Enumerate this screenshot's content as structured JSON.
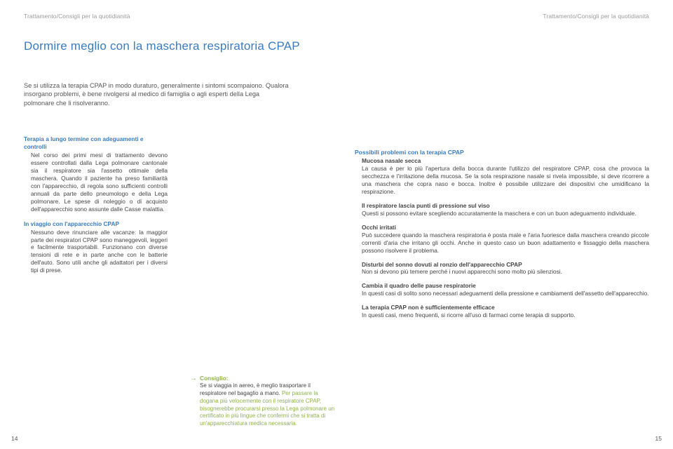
{
  "running_head": "Trattamento/Consigli per la quotidianità",
  "page_left_num": "14",
  "page_right_num": "15",
  "title": "Dormire meglio con la maschera respiratoria CPAP",
  "intro": "Se si utilizza la terapia CPAP in modo duraturo, generalmente i sintomi scompaiono. Qualora insorgano problemi, è bene rivolgersi al medico di famiglia o agli esperti della Lega polmonare che li risolveranno.",
  "left": {
    "sec1_head": "Terapia a lungo termine con adeguamenti e controlli",
    "sec1_body": "Nel corso dei primi mesi di trattamento devono essere controllati dalla Lega polmonare cantonale sia il respiratore sia l'assetto ottimale della maschera. Quando il paziente ha preso familiarità con l'apparecchio, di regola sono sufficienti controlli annuali da parte dello pneumologo e della Lega polmonare. Le spese di noleggio o di acquisto dell'apparecchio sono assunte dalle Casse malattia.",
    "sec2_head": "In viaggio con l'apparecchio CPAP",
    "sec2_body": "Nessuno deve rinunciare alle vacanze: la maggior parte dei respiratori CPAP sono maneggevoli, leggeri e facilmente trasportabili. Funzionano con diverse tensioni di rete e in parte anche con le batterie dell'auto. Sono utili anche gli adattatori per i diversi tipi di prese."
  },
  "tip": {
    "head": "Consiglio:",
    "lead": "Se si viaggia in aereo, è meglio trasportare il respiratore nel bagaglio a mano. ",
    "body": "Per passare la dogana più velocemente con il respiratore CPAP, bisognerebbe procurarsi presso la Lega polmonare un certificato in più lingue che confermi che si tratta di un'apparecchiatura medica necessaria."
  },
  "right": {
    "main_head": "Possibili problemi con la terapia CPAP",
    "s1_head": "Mucosa nasale secca",
    "s1_body": "La causa è per lo più l'apertura della bocca durante l'utilizzo del respiratore CPAP, cosa che provoca la secchezza e l'irritazione della mucosa. Se la sola respirazione nasale si rivela impossibile, si deve ricorrere a una maschera che copra naso e bocca. Inoltre è possibile utilizzare dei dispositivi che umidificano la respirazione.",
    "s2_head": "Il respiratore lascia punti di pressione sul viso",
    "s2_body": "Questi si possono evitare scegliendo accuratamente la maschera e con un buon adeguamento individuale.",
    "s3_head": "Occhi irritati",
    "s3_body": "Può succedere quando la maschera respiratoria è posta male e l'aria fuoriesce dalla maschera creando piccole correnti d'aria che irritano gli occhi. Anche in questo caso un buon adattamento e fissaggio della maschera possono risolvere il problema.",
    "s4_head": "Disturbi del sonno dovuti al ronzio dell'apparecchio CPAP",
    "s4_body": "Non si devono più temere perché i nuovi apparecchi sono molto più silenziosi.",
    "s5_head": "Cambia il quadro delle pause respiratorie",
    "s5_body": "In questi casi di solito sono necessari adeguamenti della pressione e cambiamenti dell'assetto dell'apparecchio.",
    "s6_head": "La terapia CPAP non è sufficientemente efficace",
    "s6_body": "In questi casi, meno frequenti, si ricorre all'uso di farmaci come terapia di supporto."
  }
}
